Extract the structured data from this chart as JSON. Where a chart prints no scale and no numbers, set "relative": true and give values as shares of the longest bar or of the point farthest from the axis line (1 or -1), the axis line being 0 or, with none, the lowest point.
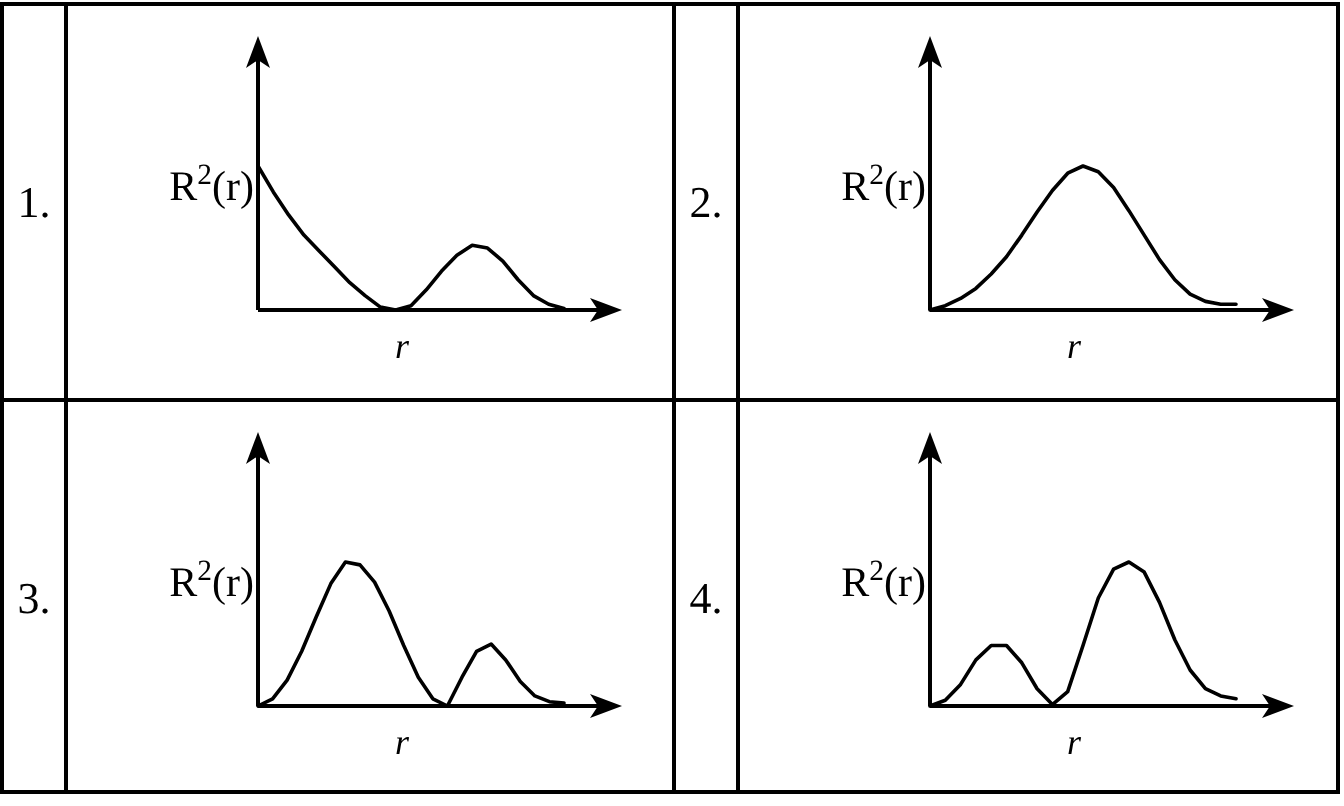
{
  "chart_data": [
    {
      "type": "line",
      "title": "1.",
      "xlabel": "r",
      "ylabel": "R$^{2}$(r)",
      "relative": true,
      "categories": [
        null,
        null,
        null,
        null,
        null,
        null,
        null,
        null,
        null,
        null,
        null,
        null,
        null,
        null,
        null,
        null,
        null,
        null,
        null,
        null,
        null
      ],
      "series": [
        {
          "color": "#000000",
          "values": [
            1.0,
            0.82,
            0.66,
            0.52,
            0.41,
            0.3,
            0.19,
            0.1,
            0.02,
            0,
            0.03,
            0.14,
            0.27,
            0.38,
            0.45,
            0.43,
            0.34,
            0.21,
            0.1,
            0.04,
            0.01
          ]
        }
      ]
    },
    {
      "type": "line",
      "title": "2.",
      "xlabel": "r",
      "ylabel": "R$^{2}$(r)",
      "relative": true,
      "categories": [
        null,
        null,
        null,
        null,
        null,
        null,
        null,
        null,
        null,
        null,
        null,
        null,
        null,
        null,
        null,
        null,
        null,
        null,
        null,
        null,
        null
      ],
      "series": [
        {
          "color": "#000000",
          "values": [
            0,
            0.03,
            0.08,
            0.15,
            0.25,
            0.37,
            0.52,
            0.68,
            0.83,
            0.95,
            1.0,
            0.96,
            0.85,
            0.69,
            0.52,
            0.35,
            0.21,
            0.11,
            0.06,
            0.04,
            0.04
          ]
        }
      ]
    },
    {
      "type": "line",
      "title": "3.",
      "xlabel": "r",
      "ylabel": "R$^{2}$(r)",
      "relative": true,
      "categories": [
        null,
        null,
        null,
        null,
        null,
        null,
        null,
        null,
        null,
        null,
        null,
        null,
        null,
        null,
        null,
        null,
        null,
        null,
        null,
        null,
        null,
        null
      ],
      "series": [
        {
          "color": "#000000",
          "values": [
            0,
            0.05,
            0.18,
            0.38,
            0.62,
            0.85,
            1.0,
            0.98,
            0.86,
            0.66,
            0.42,
            0.2,
            0.05,
            0,
            0.2,
            0.38,
            0.43,
            0.32,
            0.17,
            0.07,
            0.03,
            0.02
          ]
        }
      ]
    },
    {
      "type": "line",
      "title": "4.",
      "xlabel": "r",
      "ylabel": "R$^{2}$(r)",
      "relative": true,
      "categories": [
        null,
        null,
        null,
        null,
        null,
        null,
        null,
        null,
        null,
        null,
        null,
        null,
        null,
        null,
        null,
        null,
        null,
        null,
        null,
        null,
        null
      ],
      "series": [
        {
          "color": "#000000",
          "values": [
            0,
            0.04,
            0.15,
            0.32,
            0.42,
            0.42,
            0.3,
            0.12,
            0.01,
            0.1,
            0.42,
            0.75,
            0.95,
            1.0,
            0.93,
            0.72,
            0.46,
            0.25,
            0.12,
            0.07,
            0.05
          ]
        }
      ]
    }
  ]
}
